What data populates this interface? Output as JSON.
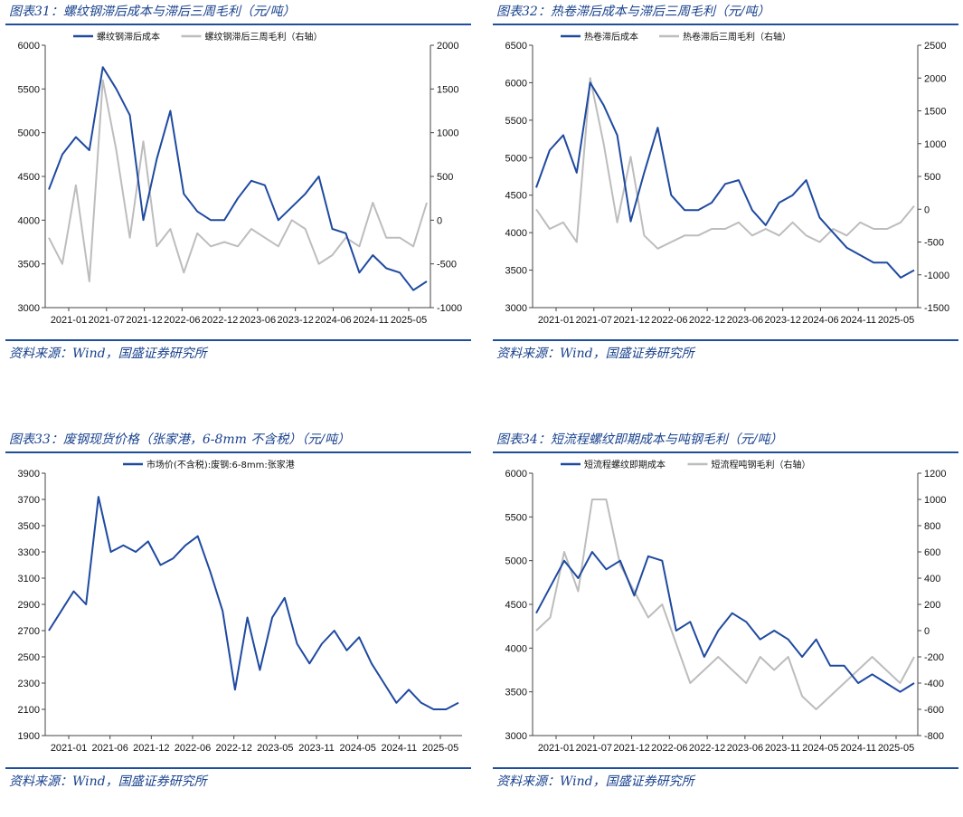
{
  "panels": [
    {
      "id": "p31",
      "title": "图表31：螺纹钢滞后成本与滞后三周毛利（元/吨）",
      "source": "资料来源：Wind，国盛证券研究所"
    },
    {
      "id": "p32",
      "title": "图表32：热卷滞后成本与滞后三周毛利（元/吨）",
      "source": "资料来源：Wind，国盛证券研究所"
    },
    {
      "id": "p33",
      "title": "图表33：废钢现货价格（张家港，6-8mm 不含税）（元/吨）",
      "source": "资料来源：Wind，国盛证券研究所"
    },
    {
      "id": "p34",
      "title": "图表34：短流程螺纹即期成本与吨钢毛利（元/吨）",
      "source": "资料来源：Wind，国盛证券研究所"
    }
  ],
  "colors": {
    "primary": "#1f4aa0",
    "secondary": "#bdbdbd",
    "rule": "#1f4f9a"
  },
  "chart_data": [
    {
      "type": "line",
      "x_tick_labels": [
        "2021-01",
        "2021-07",
        "2021-12",
        "2022-06",
        "2022-12",
        "2023-06",
        "2023-12",
        "2024-06",
        "2024-11",
        "2025-05"
      ],
      "y_left": {
        "min": 3000,
        "max": 6000,
        "ticks": [
          3000,
          3500,
          4000,
          4500,
          5000,
          5500,
          6000
        ]
      },
      "y_right": {
        "min": -1000,
        "max": 2000,
        "ticks": [
          -1000,
          -500,
          0,
          500,
          1000,
          1500,
          2000
        ]
      },
      "legend_position": "top",
      "series": [
        {
          "name": "螺纹钢滞后成本",
          "axis": "left",
          "color": "#1f4aa0",
          "values": [
            4350,
            4750,
            4950,
            4800,
            5750,
            5500,
            5200,
            4000,
            4700,
            5250,
            4300,
            4100,
            4000,
            4000,
            4250,
            4450,
            4400,
            4000,
            4150,
            4300,
            4500,
            3900,
            3850,
            3400,
            3600,
            3450,
            3400,
            3200,
            3300
          ]
        },
        {
          "name": "螺纹钢滞后三周毛利（右轴）",
          "axis": "right",
          "color": "#bdbdbd",
          "values": [
            -200,
            -500,
            400,
            -700,
            1600,
            800,
            -200,
            900,
            -300,
            -100,
            -600,
            -150,
            -300,
            -250,
            -300,
            -100,
            -200,
            -300,
            0,
            -100,
            -500,
            -400,
            -200,
            -300,
            200,
            -200,
            -200,
            -300,
            200
          ]
        }
      ]
    },
    {
      "type": "line",
      "x_tick_labels": [
        "2021-01",
        "2021-07",
        "2021-12",
        "2022-06",
        "2022-12",
        "2023-06",
        "2023-12",
        "2024-06",
        "2024-11",
        "2025-05"
      ],
      "y_left": {
        "min": 3000,
        "max": 6500,
        "ticks": [
          3000,
          3500,
          4000,
          4500,
          5000,
          5500,
          6000,
          6500
        ]
      },
      "y_right": {
        "min": -1500,
        "max": 2500,
        "ticks": [
          -1500,
          -1000,
          -500,
          0,
          500,
          1000,
          1500,
          2000,
          2500
        ]
      },
      "legend_position": "top",
      "series": [
        {
          "name": "热卷滞后成本",
          "axis": "left",
          "color": "#1f4aa0",
          "values": [
            4600,
            5100,
            5300,
            4800,
            6000,
            5700,
            5300,
            4150,
            4800,
            5400,
            4500,
            4300,
            4300,
            4400,
            4650,
            4700,
            4300,
            4100,
            4400,
            4500,
            4700,
            4200,
            4000,
            3800,
            3700,
            3600,
            3600,
            3400,
            3500
          ]
        },
        {
          "name": "热卷滞后三周毛利（右轴）",
          "axis": "right",
          "color": "#bdbdbd",
          "values": [
            0,
            -300,
            -200,
            -500,
            2000,
            1000,
            -200,
            800,
            -400,
            -600,
            -500,
            -400,
            -400,
            -300,
            -300,
            -200,
            -400,
            -300,
            -400,
            -200,
            -400,
            -500,
            -300,
            -400,
            -200,
            -300,
            -300,
            -200,
            50
          ]
        }
      ]
    },
    {
      "type": "line",
      "x_tick_labels": [
        "2021-01",
        "2021-06",
        "2021-12",
        "2022-06",
        "2022-12",
        "2023-05",
        "2023-11",
        "2024-05",
        "2024-11",
        "2025-05"
      ],
      "y_left": {
        "min": 1900,
        "max": 3900,
        "ticks": [
          1900,
          2100,
          2300,
          2500,
          2700,
          2900,
          3100,
          3300,
          3500,
          3700,
          3900
        ]
      },
      "legend_position": "top",
      "series": [
        {
          "name": "市场价(不含税):废钢:6-8mm:张家港",
          "axis": "left",
          "color": "#1f4aa0",
          "values": [
            2700,
            2850,
            3000,
            2900,
            3720,
            3300,
            3350,
            3300,
            3380,
            3200,
            3250,
            3350,
            3420,
            3150,
            2850,
            2250,
            2800,
            2400,
            2800,
            2950,
            2600,
            2450,
            2600,
            2700,
            2550,
            2650,
            2450,
            2300,
            2150,
            2250,
            2150,
            2100,
            2100,
            2150
          ]
        }
      ]
    },
    {
      "type": "line",
      "x_tick_labels": [
        "2021-01",
        "2021-07",
        "2021-12",
        "2022-06",
        "2022-12",
        "2023-06",
        "2023-11",
        "2024-05",
        "2024-11",
        "2025-05"
      ],
      "y_left": {
        "min": 3000,
        "max": 6000,
        "ticks": [
          3000,
          3500,
          4000,
          4500,
          5000,
          5500,
          6000
        ]
      },
      "y_right": {
        "min": -800,
        "max": 1200,
        "ticks": [
          -800,
          -600,
          -400,
          -200,
          0,
          200,
          400,
          600,
          800,
          1000,
          1200
        ]
      },
      "legend_position": "top",
      "series": [
        {
          "name": "短流程螺纹即期成本",
          "axis": "left",
          "color": "#1f4aa0",
          "values": [
            4400,
            4700,
            5000,
            4800,
            5100,
            4900,
            5000,
            4600,
            5050,
            5000,
            4200,
            4300,
            3900,
            4200,
            4400,
            4300,
            4100,
            4200,
            4100,
            3900,
            4100,
            3800,
            3800,
            3600,
            3700,
            3600,
            3500,
            3600
          ]
        },
        {
          "name": "短流程吨钢毛利（右轴）",
          "axis": "right",
          "color": "#bdbdbd",
          "values": [
            0,
            100,
            600,
            300,
            1000,
            1000,
            500,
            300,
            100,
            200,
            -100,
            -400,
            -300,
            -200,
            -300,
            -400,
            -200,
            -300,
            -200,
            -500,
            -600,
            -500,
            -400,
            -300,
            -200,
            -300,
            -400,
            -200
          ]
        }
      ]
    }
  ]
}
